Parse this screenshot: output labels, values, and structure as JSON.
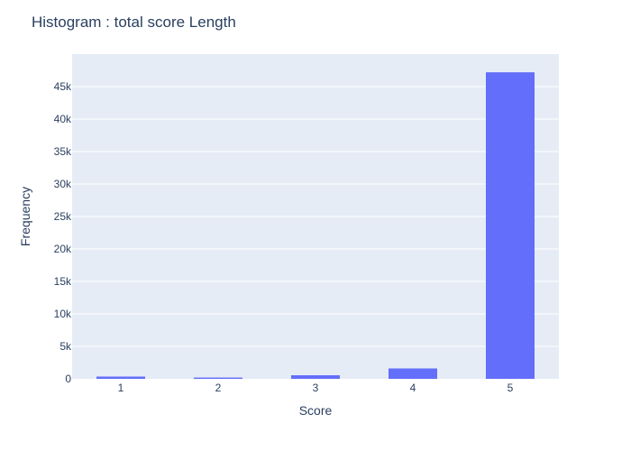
{
  "chart_data": {
    "type": "bar",
    "title": "Histogram : total score Length",
    "xlabel": "Score",
    "ylabel": "Frequency",
    "categories": [
      "1",
      "2",
      "3",
      "4",
      "5"
    ],
    "values": [
      350,
      200,
      550,
      1600,
      47200
    ],
    "ylim": [
      0,
      50000
    ],
    "yticks": [
      0,
      5000,
      10000,
      15000,
      20000,
      25000,
      30000,
      35000,
      40000,
      45000
    ],
    "ytick_labels": [
      "0",
      "5k",
      "10k",
      "15k",
      "20k",
      "25k",
      "30k",
      "35k",
      "40k",
      "45k"
    ],
    "grid": true,
    "colors": {
      "bar": "#636efa",
      "plot_bg": "#e5ecf6",
      "grid": "#ffffff",
      "text": "#2a3f5f"
    }
  }
}
